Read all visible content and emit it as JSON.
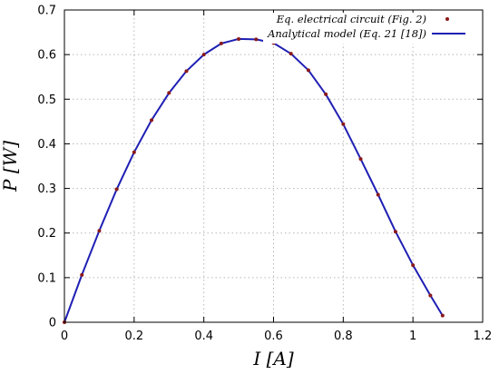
{
  "chart_data": {
    "type": "line",
    "xlabel": "I [A]",
    "ylabel": "P [W]",
    "xlim": [
      0,
      1.2
    ],
    "ylim": [
      0,
      0.7
    ],
    "xticks": [
      "0",
      "0.2",
      "0.4",
      "0.6",
      "0.8",
      "1",
      "1.2"
    ],
    "yticks": [
      "0",
      "0.1",
      "0.2",
      "0.3",
      "0.4",
      "0.5",
      "0.6",
      "0.7"
    ],
    "grid": true,
    "legend_position": "top-right",
    "series": [
      {
        "name": "Eq. electrical circuit (Fig. 2)",
        "style": "points",
        "color": "#8b1a1a",
        "x": [
          0.0,
          0.05,
          0.1,
          0.15,
          0.2,
          0.25,
          0.3,
          0.35,
          0.4,
          0.45,
          0.5,
          0.55,
          0.6,
          0.65,
          0.7,
          0.75,
          0.8,
          0.85,
          0.9,
          0.95,
          1.0,
          1.05,
          1.085
        ],
        "y": [
          0.0,
          0.106,
          0.205,
          0.298,
          0.381,
          0.453,
          0.514,
          0.563,
          0.6,
          0.625,
          0.635,
          0.634,
          0.626,
          0.602,
          0.565,
          0.511,
          0.444,
          0.366,
          0.286,
          0.203,
          0.128,
          0.06,
          0.015
        ]
      },
      {
        "name": "Analytical model (Eq. 21 [18])",
        "style": "line",
        "color": "#1f1fb4",
        "x": [
          0.0,
          0.05,
          0.1,
          0.15,
          0.2,
          0.25,
          0.3,
          0.35,
          0.4,
          0.45,
          0.5,
          0.55,
          0.6,
          0.65,
          0.7,
          0.75,
          0.8,
          0.85,
          0.9,
          0.95,
          1.0,
          1.05,
          1.085
        ],
        "y": [
          0.0,
          0.106,
          0.205,
          0.298,
          0.381,
          0.453,
          0.514,
          0.563,
          0.6,
          0.625,
          0.635,
          0.634,
          0.626,
          0.602,
          0.565,
          0.511,
          0.444,
          0.366,
          0.286,
          0.203,
          0.128,
          0.06,
          0.015
        ]
      }
    ]
  }
}
